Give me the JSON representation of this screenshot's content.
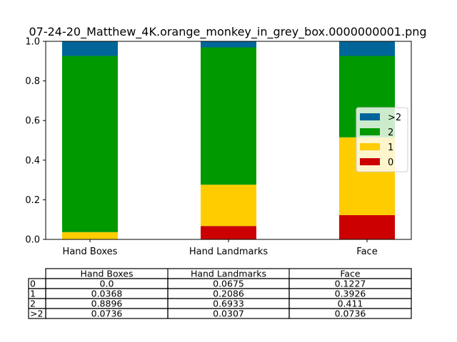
{
  "chart_data": {
    "type": "bar",
    "stacked": true,
    "title": "07-24-20_Matthew_4K.orange_monkey_in_grey_box.0000000001.png",
    "categories": [
      "Hand Boxes",
      "Hand Landmarks",
      "Face"
    ],
    "ylim": [
      0,
      1.0
    ],
    "yticks": [
      "0.0",
      "0.2",
      "0.4",
      "0.6",
      "0.8",
      "1.0"
    ],
    "grid": false,
    "legend_position": "center-right",
    "series": [
      {
        "name": "0",
        "color": "#cc0000",
        "values": [
          0.0,
          0.0675,
          0.1227
        ]
      },
      {
        "name": "1",
        "color": "#ffcc00",
        "values": [
          0.0368,
          0.2086,
          0.3926
        ]
      },
      {
        "name": "2",
        "color": "#009900",
        "values": [
          0.8896,
          0.6933,
          0.411
        ]
      },
      {
        "name": ">2",
        "color": "#006699",
        "values": [
          0.0736,
          0.0307,
          0.0736
        ]
      }
    ],
    "table": {
      "columns": [
        "Hand Boxes",
        "Hand Landmarks",
        "Face"
      ],
      "rows": [
        {
          "label": "0",
          "cells": [
            "0.0",
            "0.0675",
            "0.1227"
          ]
        },
        {
          "label": "1",
          "cells": [
            "0.0368",
            "0.2086",
            "0.3926"
          ]
        },
        {
          "label": "2",
          "cells": [
            "0.8896",
            "0.6933",
            "0.411"
          ]
        },
        {
          "label": ">2",
          "cells": [
            "0.0736",
            "0.0307",
            "0.0736"
          ]
        }
      ]
    }
  }
}
